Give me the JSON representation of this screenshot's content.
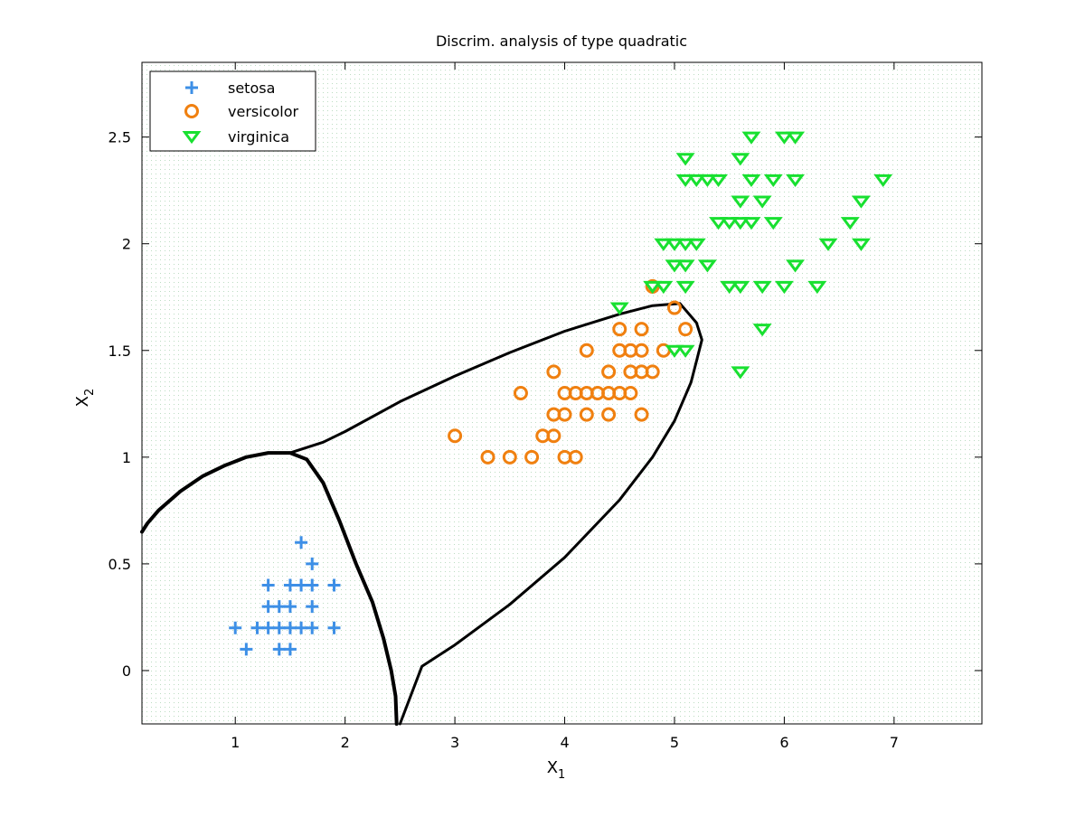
{
  "chart_data": {
    "type": "scatter",
    "title": "Discrim. analysis of type quadratic",
    "xlabel": {
      "base": "X",
      "sub": "1"
    },
    "ylabel": {
      "base": "X",
      "sub": "2"
    },
    "xlim": [
      0.15,
      7.8
    ],
    "ylim": [
      -0.25,
      2.85
    ],
    "xticks": [
      1,
      2,
      3,
      4,
      5,
      6,
      7
    ],
    "yticks": [
      0,
      0.5,
      1,
      1.5,
      2,
      2.5
    ],
    "xtick_labels": [
      "1",
      "2",
      "3",
      "4",
      "5",
      "6",
      "7"
    ],
    "ytick_labels": [
      "0",
      "0.5",
      "1",
      "1.5",
      "2",
      "2.5"
    ],
    "grid": false,
    "legend_position": "top-left",
    "region_colors": {
      "setosa": "#e6eefa",
      "versicolor": "#fbe8dc",
      "virginica": "#d2f2d6"
    },
    "series": [
      {
        "name": "setosa",
        "marker": "plus",
        "color": "#3d8fe6",
        "points": [
          [
            1.0,
            0.2
          ],
          [
            1.1,
            0.1
          ],
          [
            1.2,
            0.2
          ],
          [
            1.3,
            0.2
          ],
          [
            1.3,
            0.3
          ],
          [
            1.3,
            0.4
          ],
          [
            1.4,
            0.1
          ],
          [
            1.4,
            0.2
          ],
          [
            1.4,
            0.3
          ],
          [
            1.5,
            0.1
          ],
          [
            1.5,
            0.2
          ],
          [
            1.5,
            0.3
          ],
          [
            1.5,
            0.4
          ],
          [
            1.6,
            0.2
          ],
          [
            1.6,
            0.4
          ],
          [
            1.6,
            0.6
          ],
          [
            1.7,
            0.2
          ],
          [
            1.7,
            0.3
          ],
          [
            1.7,
            0.4
          ],
          [
            1.7,
            0.5
          ],
          [
            1.9,
            0.2
          ],
          [
            1.9,
            0.4
          ]
        ]
      },
      {
        "name": "versicolor",
        "marker": "circle",
        "color": "#f08010",
        "points": [
          [
            3.0,
            1.1
          ],
          [
            3.3,
            1.0
          ],
          [
            3.5,
            1.0
          ],
          [
            3.6,
            1.3
          ],
          [
            3.7,
            1.0
          ],
          [
            3.8,
            1.1
          ],
          [
            3.9,
            1.1
          ],
          [
            3.9,
            1.2
          ],
          [
            3.9,
            1.4
          ],
          [
            4.0,
            1.0
          ],
          [
            4.0,
            1.2
          ],
          [
            4.0,
            1.3
          ],
          [
            4.1,
            1.0
          ],
          [
            4.1,
            1.3
          ],
          [
            4.2,
            1.2
          ],
          [
            4.2,
            1.3
          ],
          [
            4.2,
            1.5
          ],
          [
            4.3,
            1.3
          ],
          [
            4.4,
            1.2
          ],
          [
            4.4,
            1.3
          ],
          [
            4.4,
            1.4
          ],
          [
            4.5,
            1.3
          ],
          [
            4.5,
            1.5
          ],
          [
            4.5,
            1.6
          ],
          [
            4.6,
            1.3
          ],
          [
            4.6,
            1.4
          ],
          [
            4.6,
            1.5
          ],
          [
            4.7,
            1.2
          ],
          [
            4.7,
            1.4
          ],
          [
            4.7,
            1.5
          ],
          [
            4.7,
            1.6
          ],
          [
            4.8,
            1.4
          ],
          [
            4.8,
            1.8
          ],
          [
            4.9,
            1.5
          ],
          [
            5.0,
            1.7
          ],
          [
            5.1,
            1.6
          ]
        ]
      },
      {
        "name": "virginica",
        "marker": "triangle-down",
        "color": "#18e030",
        "points": [
          [
            4.5,
            1.7
          ],
          [
            4.8,
            1.8
          ],
          [
            4.9,
            1.8
          ],
          [
            4.9,
            2.0
          ],
          [
            5.0,
            1.5
          ],
          [
            5.0,
            1.9
          ],
          [
            5.0,
            2.0
          ],
          [
            5.1,
            1.5
          ],
          [
            5.1,
            1.8
          ],
          [
            5.1,
            1.9
          ],
          [
            5.1,
            2.0
          ],
          [
            5.1,
            2.3
          ],
          [
            5.1,
            2.4
          ],
          [
            5.2,
            2.0
          ],
          [
            5.2,
            2.3
          ],
          [
            5.3,
            1.9
          ],
          [
            5.3,
            2.3
          ],
          [
            5.4,
            2.1
          ],
          [
            5.4,
            2.3
          ],
          [
            5.5,
            1.8
          ],
          [
            5.5,
            2.1
          ],
          [
            5.6,
            1.4
          ],
          [
            5.6,
            1.8
          ],
          [
            5.6,
            2.1
          ],
          [
            5.6,
            2.2
          ],
          [
            5.6,
            2.4
          ],
          [
            5.7,
            2.1
          ],
          [
            5.7,
            2.3
          ],
          [
            5.7,
            2.5
          ],
          [
            5.8,
            1.6
          ],
          [
            5.8,
            1.8
          ],
          [
            5.8,
            2.2
          ],
          [
            5.9,
            2.1
          ],
          [
            5.9,
            2.3
          ],
          [
            6.0,
            1.8
          ],
          [
            6.0,
            2.5
          ],
          [
            6.1,
            1.9
          ],
          [
            6.1,
            2.3
          ],
          [
            6.1,
            2.5
          ],
          [
            6.3,
            1.8
          ],
          [
            6.4,
            2.0
          ],
          [
            6.6,
            2.1
          ],
          [
            6.7,
            2.0
          ],
          [
            6.7,
            2.2
          ],
          [
            6.9,
            2.3
          ]
        ]
      }
    ],
    "boundaries": [
      {
        "name": "setosa-boundary",
        "lineweight": "heavy",
        "points": [
          [
            0.15,
            0.65
          ],
          [
            0.2,
            0.69
          ],
          [
            0.3,
            0.75
          ],
          [
            0.5,
            0.84
          ],
          [
            0.7,
            0.91
          ],
          [
            0.9,
            0.96
          ],
          [
            1.1,
            1.0
          ],
          [
            1.3,
            1.02
          ],
          [
            1.5,
            1.02
          ],
          [
            1.65,
            0.99
          ],
          [
            1.8,
            0.88
          ],
          [
            1.95,
            0.7
          ],
          [
            2.1,
            0.5
          ],
          [
            2.25,
            0.32
          ],
          [
            2.35,
            0.15
          ],
          [
            2.42,
            0.0
          ],
          [
            2.46,
            -0.12
          ],
          [
            2.47,
            -0.25
          ]
        ]
      },
      {
        "name": "versicolor-virginica-boundary",
        "lineweight": "light",
        "points": [
          [
            1.5,
            1.02
          ],
          [
            1.8,
            1.07
          ],
          [
            2.0,
            1.12
          ],
          [
            2.5,
            1.26
          ],
          [
            3.0,
            1.38
          ],
          [
            3.5,
            1.49
          ],
          [
            4.0,
            1.59
          ],
          [
            4.5,
            1.67
          ],
          [
            4.8,
            1.71
          ],
          [
            5.05,
            1.72
          ],
          [
            5.2,
            1.63
          ],
          [
            5.25,
            1.55
          ],
          [
            5.2,
            1.45
          ],
          [
            5.15,
            1.35
          ],
          [
            5.0,
            1.17
          ],
          [
            4.8,
            1.0
          ],
          [
            4.5,
            0.8
          ],
          [
            4.0,
            0.53
          ],
          [
            3.5,
            0.31
          ],
          [
            3.0,
            0.12
          ],
          [
            2.7,
            0.02
          ],
          [
            2.5,
            -0.25
          ]
        ]
      }
    ]
  }
}
